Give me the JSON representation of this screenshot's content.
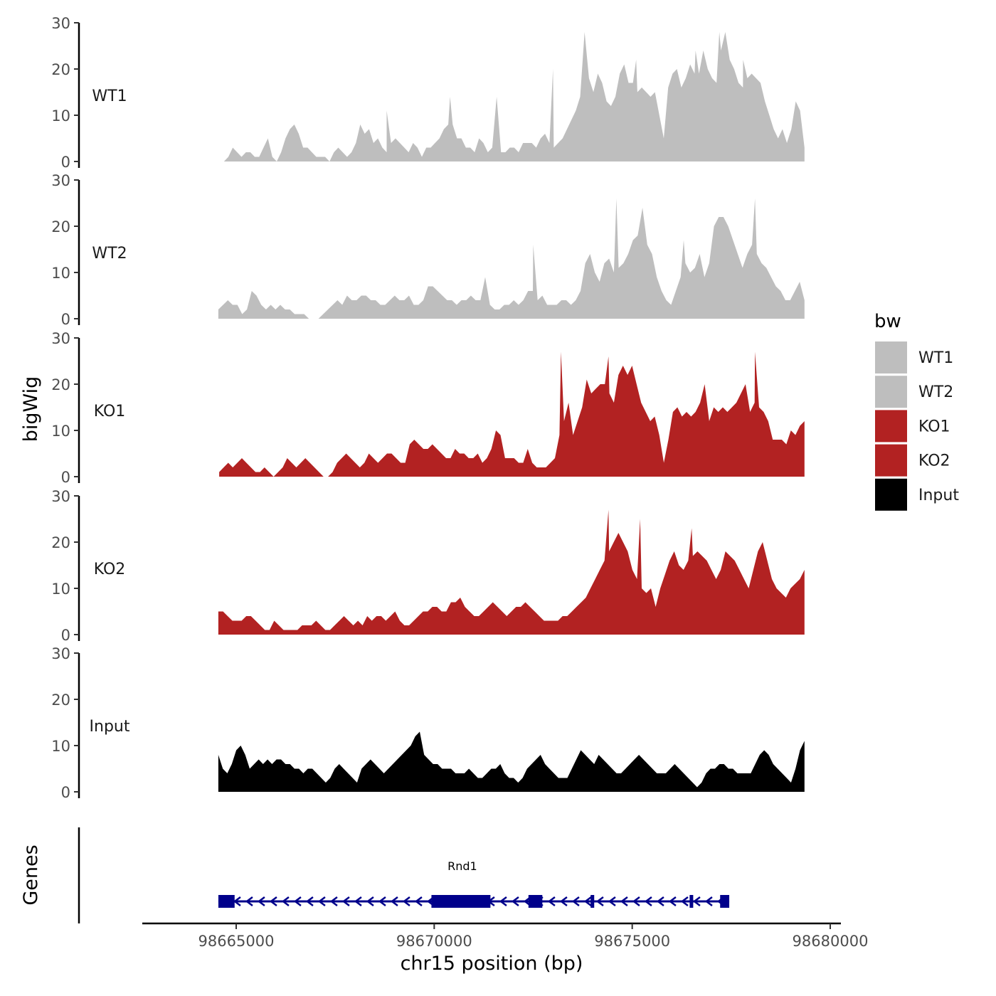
{
  "chart_data": {
    "type": "area",
    "xlabel": "chr15 position (bp)",
    "ylabel": "bigWig",
    "genes_track_label": "Genes",
    "xlim": [
      98662000,
      98680300
    ],
    "ylim": [
      0,
      30
    ],
    "y_ticks": [
      "0",
      "10",
      "20",
      "30"
    ],
    "x_ticks": [
      {
        "value": 98665000,
        "label": "98665000"
      },
      {
        "value": 98670000,
        "label": "98670000"
      },
      {
        "value": 98675000,
        "label": "98675000"
      },
      {
        "value": 98680000,
        "label": "98680000"
      }
    ],
    "legend": {
      "title": "bw",
      "entries": [
        {
          "label": "WT1",
          "color": "#bebebe"
        },
        {
          "label": "WT2",
          "color": "#bebebe"
        },
        {
          "label": "KO1",
          "color": "#b22222"
        },
        {
          "label": "KO2",
          "color": "#b22222"
        },
        {
          "label": "Input",
          "color": "#000000"
        }
      ]
    },
    "series": [
      {
        "name": "WT1",
        "color": "#bebebe",
        "x_start": 98664580,
        "x_end": 98679350,
        "values": [
          0,
          0,
          1,
          3,
          2,
          1,
          2,
          2,
          1,
          1,
          3,
          5,
          1,
          0,
          2,
          5,
          7,
          8,
          6,
          3,
          3,
          2,
          1,
          1,
          1,
          0,
          2,
          3,
          2,
          1,
          2,
          4,
          8,
          6,
          7,
          4,
          5,
          3,
          2,
          4,
          5,
          4,
          3,
          2,
          4,
          3,
          1,
          3,
          3,
          4,
          5,
          7,
          8,
          8,
          5,
          5,
          3,
          3,
          2,
          5,
          4,
          2,
          3,
          14,
          2,
          2,
          3,
          3,
          2,
          4,
          4,
          4,
          3,
          5,
          6,
          4,
          3,
          4,
          5,
          7,
          9,
          11,
          14,
          28,
          18,
          15,
          19,
          17,
          13,
          12,
          14,
          19,
          21,
          17,
          17,
          15,
          16,
          15,
          14,
          15,
          10,
          5,
          16,
          19,
          20,
          16,
          18,
          21,
          19,
          19,
          24,
          20,
          18,
          17,
          24,
          28,
          22,
          20,
          17,
          16,
          18,
          19,
          18,
          17,
          13,
          10,
          7,
          5,
          7,
          4,
          7,
          13,
          11,
          3
        ],
        "spikes": [
          {
            "x": 98668800,
            "y": 11
          },
          {
            "x": 98670400,
            "y": 14
          },
          {
            "x": 98673000,
            "y": 20
          },
          {
            "x": 98675100,
            "y": 22
          },
          {
            "x": 98676600,
            "y": 24
          },
          {
            "x": 98677200,
            "y": 28
          },
          {
            "x": 98677800,
            "y": 22
          }
        ]
      },
      {
        "name": "WT2",
        "color": "#bebebe",
        "x_start": 98664550,
        "x_end": 98679350,
        "values": [
          2,
          3,
          4,
          3,
          3,
          1,
          2,
          6,
          5,
          3,
          2,
          3,
          2,
          3,
          2,
          2,
          1,
          1,
          1,
          0,
          0,
          0,
          1,
          2,
          3,
          4,
          3,
          5,
          4,
          4,
          5,
          5,
          4,
          4,
          3,
          3,
          4,
          5,
          4,
          4,
          5,
          3,
          3,
          4,
          7,
          7,
          6,
          5,
          4,
          4,
          3,
          4,
          4,
          5,
          4,
          4,
          9,
          3,
          2,
          2,
          3,
          3,
          4,
          3,
          4,
          6,
          6,
          4,
          5,
          3,
          3,
          3,
          4,
          4,
          3,
          4,
          6,
          12,
          14,
          10,
          8,
          12,
          13,
          10,
          11,
          12,
          14,
          17,
          18,
          24,
          16,
          14,
          9,
          6,
          4,
          3,
          6,
          9,
          12,
          10,
          11,
          14,
          9,
          12,
          20,
          22,
          22,
          20,
          17,
          14,
          11,
          14,
          16,
          14,
          12,
          11,
          9,
          7,
          6,
          4,
          4,
          6,
          8,
          4
        ],
        "spikes": [
          {
            "x": 98672500,
            "y": 16
          },
          {
            "x": 98674600,
            "y": 26
          },
          {
            "x": 98676300,
            "y": 17
          },
          {
            "x": 98678100,
            "y": 26
          }
        ]
      },
      {
        "name": "KO1",
        "color": "#b22222",
        "x_start": 98664570,
        "x_end": 98679350,
        "values": [
          1,
          2,
          3,
          2,
          3,
          4,
          3,
          2,
          1,
          1,
          2,
          1,
          0,
          1,
          2,
          4,
          3,
          2,
          3,
          4,
          3,
          2,
          1,
          0,
          0,
          1,
          3,
          4,
          5,
          4,
          3,
          2,
          3,
          5,
          4,
          3,
          4,
          5,
          5,
          4,
          3,
          3,
          7,
          8,
          7,
          6,
          6,
          7,
          6,
          5,
          4,
          4,
          6,
          5,
          5,
          4,
          4,
          5,
          3,
          4,
          6,
          10,
          9,
          4,
          4,
          4,
          3,
          3,
          6,
          3,
          2,
          2,
          2,
          3,
          4,
          9,
          12,
          16,
          9,
          12,
          15,
          21,
          18,
          19,
          20,
          20,
          18,
          16,
          22,
          24,
          22,
          24,
          20,
          16,
          14,
          12,
          13,
          9,
          3,
          8,
          14,
          15,
          13,
          14,
          13,
          14,
          16,
          20,
          12,
          15,
          14,
          15,
          14,
          15,
          16,
          18,
          20,
          14,
          16,
          15,
          14,
          12,
          8,
          8,
          8,
          7,
          10,
          9,
          11,
          12
        ],
        "spikes": [
          {
            "x": 98673200,
            "y": 27
          },
          {
            "x": 98674400,
            "y": 26
          },
          {
            "x": 98678100,
            "y": 27
          }
        ]
      },
      {
        "name": "KO2",
        "color": "#b22222",
        "x_start": 98664550,
        "x_end": 98679350,
        "values": [
          5,
          5,
          4,
          3,
          3,
          3,
          4,
          4,
          3,
          2,
          1,
          1,
          3,
          2,
          1,
          1,
          1,
          1,
          2,
          2,
          2,
          3,
          2,
          1,
          1,
          2,
          3,
          4,
          3,
          2,
          3,
          2,
          4,
          3,
          4,
          4,
          3,
          4,
          5,
          3,
          2,
          2,
          3,
          4,
          5,
          5,
          6,
          6,
          5,
          5,
          7,
          7,
          8,
          6,
          5,
          4,
          4,
          5,
          6,
          7,
          6,
          5,
          4,
          5,
          6,
          6,
          7,
          6,
          5,
          4,
          3,
          3,
          3,
          3,
          4,
          4,
          5,
          6,
          7,
          8,
          10,
          12,
          14,
          16,
          18,
          20,
          22,
          20,
          18,
          14,
          12,
          10,
          9,
          10,
          6,
          10,
          13,
          16,
          18,
          15,
          14,
          16,
          17,
          18,
          17,
          16,
          14,
          12,
          14,
          18,
          17,
          16,
          14,
          12,
          10,
          14,
          18,
          20,
          16,
          12,
          10,
          9,
          8,
          10,
          11,
          12,
          14
        ],
        "spikes": [
          {
            "x": 98674400,
            "y": 27
          },
          {
            "x": 98675200,
            "y": 25
          },
          {
            "x": 98676500,
            "y": 23
          }
        ]
      },
      {
        "name": "Input",
        "color": "#000000",
        "x_start": 98664550,
        "x_end": 98679350,
        "values": [
          8,
          5,
          4,
          6,
          9,
          10,
          8,
          5,
          6,
          7,
          6,
          7,
          6,
          7,
          7,
          6,
          6,
          5,
          5,
          4,
          5,
          5,
          4,
          3,
          2,
          3,
          5,
          6,
          5,
          4,
          3,
          2,
          5,
          6,
          7,
          6,
          5,
          4,
          5,
          6,
          7,
          8,
          9,
          10,
          12,
          13,
          8,
          7,
          6,
          6,
          5,
          5,
          5,
          4,
          4,
          4,
          5,
          4,
          3,
          3,
          4,
          5,
          5,
          6,
          4,
          3,
          3,
          2,
          3,
          5,
          6,
          7,
          8,
          6,
          5,
          4,
          3,
          3,
          3,
          5,
          7,
          9,
          8,
          7,
          6,
          8,
          7,
          6,
          5,
          4,
          4,
          5,
          6,
          7,
          8,
          7,
          6,
          5,
          4,
          4,
          4,
          5,
          6,
          5,
          4,
          3,
          2,
          1,
          2,
          4,
          5,
          5,
          6,
          6,
          5,
          5,
          4,
          4,
          4,
          4,
          6,
          8,
          9,
          8,
          6,
          5,
          4,
          3,
          2,
          5,
          9,
          11
        ]
      }
    ],
    "genes": [
      {
        "name": "Rnd1",
        "strand": "-",
        "color": "#00008b",
        "start": 98664550,
        "end": 98677450,
        "exons": [
          [
            98664550,
            98664960
          ],
          [
            98669930,
            98671420
          ],
          [
            98672380,
            98672730
          ],
          [
            98673950,
            98674040
          ],
          [
            98676450,
            98676520
          ],
          [
            98677220,
            98677450
          ]
        ]
      }
    ]
  }
}
